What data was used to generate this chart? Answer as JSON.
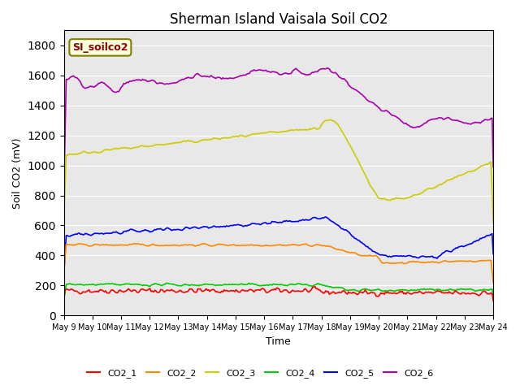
{
  "title": "Sherman Island Vaisala Soil CO2",
  "xlabel": "Time",
  "ylabel": "Soil CO2 (mV)",
  "annotation": "SI_soilco2",
  "ylim": [
    0,
    1900
  ],
  "yticks": [
    0,
    200,
    400,
    600,
    800,
    1000,
    1200,
    1400,
    1600,
    1800
  ],
  "xtick_labels": [
    "May 9",
    "May 10",
    "May 11",
    "May 12",
    "May 13",
    "May 14",
    "May 15",
    "May 16",
    "May 17",
    "May 18",
    "May 19",
    "May 20",
    "May 21",
    "May 22",
    "May 23",
    "May 24"
  ],
  "series_colors": {
    "CO2_1": "#ff0000",
    "CO2_2": "#ff8800",
    "CO2_3": "#cccc00",
    "CO2_4": "#00cc00",
    "CO2_5": "#0000ff",
    "CO2_6": "#aa00aa"
  },
  "bg_color": "#e8e8e8",
  "plot_bg": "#e8e8e8"
}
